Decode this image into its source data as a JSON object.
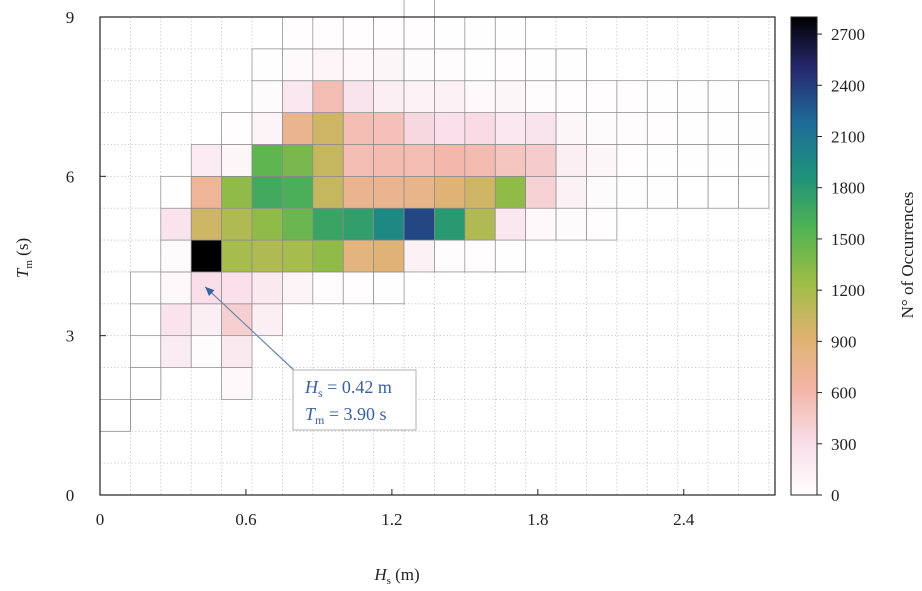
{
  "chart_data": {
    "type": "heatmap",
    "x_axis": {
      "label_main": "H",
      "label_sub": "s",
      "label_unit": " (m)",
      "range": [
        0,
        2.775
      ],
      "ticks": [
        0,
        0.6,
        1.2,
        1.8,
        2.4
      ],
      "tick_labels": [
        "0",
        "0.6",
        "1.2",
        "1.8",
        "2.4"
      ],
      "bin_width": 0.125
    },
    "y_axis": {
      "label_main": "T",
      "label_sub": "m",
      "label_unit": " (s)",
      "range": [
        0,
        9
      ],
      "ticks": [
        0,
        3,
        6,
        9
      ],
      "tick_labels": [
        "0",
        "3",
        "6",
        "9"
      ],
      "bin_height": 0.6
    },
    "colorbar": {
      "label": "N° of Occurrences",
      "range": [
        0,
        2800
      ],
      "ticks": [
        0,
        300,
        600,
        900,
        1200,
        1500,
        1800,
        2100,
        2400,
        2700
      ],
      "tick_labels": [
        "0",
        "300",
        "600",
        "900",
        "1200",
        "1500",
        "1800",
        "2100",
        "2400",
        "2700"
      ],
      "colormap": [
        "#ffffff",
        "#f8dde8",
        "#f3b5a6",
        "#ddb36f",
        "#9dbd46",
        "#52b352",
        "#1e927a",
        "#1f6c98",
        "#272a72",
        "#000000"
      ]
    },
    "grid": "dotted",
    "cells": [
      [
        0,
        2,
        1
      ],
      [
        0,
        2,
        2
      ],
      [
        1,
        3,
        1
      ],
      [
        1,
        3,
        2
      ],
      [
        1,
        4,
        1
      ],
      [
        1,
        5,
        1
      ],
      [
        1,
        6,
        1
      ],
      [
        2,
        4,
        180
      ],
      [
        2,
        5,
        260
      ],
      [
        2,
        6,
        60
      ],
      [
        2,
        7,
        40
      ],
      [
        2,
        8,
        250
      ],
      [
        2,
        9,
        5
      ],
      [
        3,
        4,
        30
      ],
      [
        3,
        5,
        150
      ],
      [
        3,
        6,
        300
      ],
      [
        3,
        7,
        2800
      ],
      [
        3,
        8,
        1000
      ],
      [
        3,
        9,
        700
      ],
      [
        3,
        10,
        180
      ],
      [
        4,
        3,
        60
      ],
      [
        4,
        4,
        200
      ],
      [
        4,
        5,
        420
      ],
      [
        4,
        6,
        280
      ],
      [
        4,
        7,
        1200
      ],
      [
        4,
        8,
        1150
      ],
      [
        4,
        9,
        1300
      ],
      [
        4,
        10,
        80
      ],
      [
        4,
        11,
        20
      ],
      [
        5,
        5,
        150
      ],
      [
        5,
        6,
        200
      ],
      [
        5,
        7,
        1150
      ],
      [
        5,
        8,
        1300
      ],
      [
        5,
        9,
        1650
      ],
      [
        5,
        10,
        1500
      ],
      [
        5,
        11,
        100
      ],
      [
        5,
        12,
        40
      ],
      [
        5,
        13,
        5
      ],
      [
        6,
        6,
        100
      ],
      [
        6,
        7,
        1200
      ],
      [
        6,
        8,
        1450
      ],
      [
        6,
        9,
        1600
      ],
      [
        6,
        10,
        1400
      ],
      [
        6,
        11,
        750
      ],
      [
        6,
        12,
        220
      ],
      [
        6,
        13,
        50
      ],
      [
        6,
        14,
        20
      ],
      [
        7,
        6,
        30
      ],
      [
        7,
        7,
        1300
      ],
      [
        7,
        8,
        1700
      ],
      [
        7,
        9,
        1050
      ],
      [
        7,
        10,
        1050
      ],
      [
        7,
        11,
        1000
      ],
      [
        7,
        12,
        560
      ],
      [
        7,
        13,
        90
      ],
      [
        7,
        14,
        15
      ],
      [
        8,
        6,
        20
      ],
      [
        8,
        7,
        850
      ],
      [
        8,
        8,
        1750
      ],
      [
        8,
        9,
        750
      ],
      [
        8,
        10,
        560
      ],
      [
        8,
        11,
        560
      ],
      [
        8,
        12,
        250
      ],
      [
        8,
        13,
        60
      ],
      [
        8,
        14,
        20
      ],
      [
        9,
        6,
        5
      ],
      [
        9,
        7,
        900
      ],
      [
        9,
        8,
        1950
      ],
      [
        9,
        9,
        750
      ],
      [
        9,
        10,
        570
      ],
      [
        9,
        11,
        540
      ],
      [
        9,
        12,
        150
      ],
      [
        9,
        13,
        80
      ],
      [
        9,
        14,
        20
      ],
      [
        10,
        7,
        120
      ],
      [
        10,
        8,
        2350
      ],
      [
        10,
        9,
        780
      ],
      [
        10,
        10,
        560
      ],
      [
        10,
        11,
        350
      ],
      [
        10,
        12,
        110
      ],
      [
        10,
        13,
        40
      ],
      [
        10,
        14,
        15
      ],
      [
        10,
        15,
        2
      ],
      [
        11,
        7,
        30
      ],
      [
        11,
        8,
        1800
      ],
      [
        11,
        9,
        900
      ],
      [
        11,
        10,
        600
      ],
      [
        11,
        11,
        280
      ],
      [
        11,
        12,
        130
      ],
      [
        11,
        13,
        30
      ],
      [
        11,
        14,
        10
      ],
      [
        12,
        7,
        20
      ],
      [
        12,
        8,
        1150
      ],
      [
        12,
        9,
        1000
      ],
      [
        12,
        10,
        570
      ],
      [
        12,
        11,
        330
      ],
      [
        12,
        12,
        50
      ],
      [
        12,
        13,
        10
      ],
      [
        12,
        14,
        5
      ],
      [
        13,
        7,
        10
      ],
      [
        13,
        8,
        220
      ],
      [
        13,
        9,
        1300
      ],
      [
        13,
        10,
        500
      ],
      [
        13,
        11,
        220
      ],
      [
        13,
        12,
        80
      ],
      [
        13,
        13,
        15
      ],
      [
        13,
        14,
        5
      ],
      [
        14,
        8,
        60
      ],
      [
        14,
        9,
        400
      ],
      [
        14,
        10,
        450
      ],
      [
        14,
        11,
        250
      ],
      [
        14,
        12,
        30
      ],
      [
        14,
        13,
        5
      ],
      [
        15,
        8,
        40
      ],
      [
        15,
        9,
        120
      ],
      [
        15,
        10,
        150
      ],
      [
        15,
        11,
        80
      ],
      [
        15,
        12,
        15
      ],
      [
        15,
        13,
        5
      ],
      [
        16,
        8,
        15
      ],
      [
        16,
        9,
        40
      ],
      [
        16,
        10,
        80
      ],
      [
        16,
        11,
        40
      ],
      [
        16,
        12,
        15
      ],
      [
        17,
        9,
        10
      ],
      [
        17,
        10,
        15
      ],
      [
        17,
        11,
        30
      ],
      [
        17,
        12,
        15
      ],
      [
        18,
        9,
        5
      ],
      [
        18,
        10,
        10
      ],
      [
        18,
        11,
        15
      ],
      [
        18,
        12,
        10
      ],
      [
        19,
        9,
        2
      ],
      [
        19,
        10,
        5
      ],
      [
        19,
        11,
        10
      ],
      [
        19,
        12,
        10
      ],
      [
        20,
        9,
        2
      ],
      [
        20,
        10,
        5
      ],
      [
        20,
        11,
        10
      ],
      [
        20,
        12,
        5
      ],
      [
        21,
        9,
        2
      ],
      [
        21,
        10,
        5
      ],
      [
        21,
        11,
        5
      ],
      [
        21,
        12,
        3
      ]
    ],
    "annotation": {
      "line1_main": "H",
      "line1_sub": "s",
      "line1_rest": " = 0.42 m",
      "line2_main": "T",
      "line2_sub": "m",
      "line2_rest": " = 3.90 s",
      "point": [
        0.42,
        3.9
      ],
      "color": "#3a5f9e"
    }
  }
}
